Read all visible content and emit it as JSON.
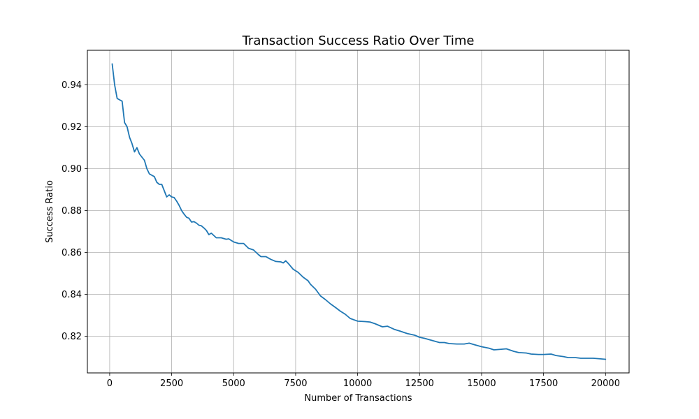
{
  "chart_data": {
    "type": "line",
    "title": "Transaction Success Ratio Over Time",
    "xlabel": "Number of Transactions",
    "ylabel": "Success Ratio",
    "xlim": [
      -900,
      20950
    ],
    "ylim": [
      0.8025,
      0.9565
    ],
    "grid": true,
    "line_color": "#1f77b4",
    "x_ticks": [
      0,
      2500,
      5000,
      7500,
      10000,
      12500,
      15000,
      17500,
      20000
    ],
    "y_ticks": [
      0.82,
      0.84,
      0.86,
      0.88,
      0.9,
      0.92,
      0.94
    ],
    "x_tick_labels": [
      "0",
      "2500",
      "5000",
      "7500",
      "10000",
      "12500",
      "15000",
      "17500",
      "20000"
    ],
    "y_tick_labels": [
      "0.82",
      "0.84",
      "0.86",
      "0.88",
      "0.90",
      "0.92",
      "0.94"
    ],
    "series": [
      {
        "x": [
          100,
          200,
          300,
          500,
          600,
          700,
          800,
          900,
          1000,
          1100,
          1200,
          1400,
          1500,
          1600,
          1800,
          1900,
          2000,
          2100,
          2300,
          2400,
          2500,
          2600,
          2700,
          2800,
          2900,
          3000,
          3100,
          3200,
          3300,
          3400,
          3500,
          3600,
          3700,
          3800,
          3900,
          4000,
          4100,
          4300,
          4500,
          4700,
          4800,
          5000,
          5200,
          5400,
          5600,
          5800,
          6000,
          6100,
          6300,
          6500,
          6700,
          6900,
          7000,
          7100,
          7200,
          7400,
          7600,
          7800,
          8000,
          8100,
          8300,
          8500,
          8700,
          8900,
          9100,
          9300,
          9500,
          9700,
          10000,
          10300,
          10500,
          10700,
          11000,
          11200,
          11500,
          11700,
          12000,
          12300,
          12500,
          12700,
          13000,
          13300,
          13500,
          13700,
          14000,
          14300,
          14500,
          14700,
          15000,
          15300,
          15500,
          15800,
          16000,
          16300,
          16500,
          16800,
          17000,
          17300,
          17500,
          17800,
          18000,
          18300,
          18500,
          18800,
          19000,
          19300,
          19500,
          19800,
          20000
        ],
        "y": [
          0.95,
          0.94,
          0.9335,
          0.9322,
          0.922,
          0.92,
          0.915,
          0.912,
          0.908,
          0.91,
          0.907,
          0.904,
          0.9,
          0.8975,
          0.8962,
          0.8935,
          0.8925,
          0.8925,
          0.8865,
          0.8875,
          0.8865,
          0.8862,
          0.8845,
          0.8825,
          0.88,
          0.8783,
          0.8768,
          0.8763,
          0.8745,
          0.8747,
          0.874,
          0.873,
          0.8727,
          0.8717,
          0.8705,
          0.8685,
          0.8692,
          0.867,
          0.867,
          0.8663,
          0.8665,
          0.865,
          0.8643,
          0.8643,
          0.862,
          0.8612,
          0.859,
          0.858,
          0.858,
          0.8567,
          0.8557,
          0.8555,
          0.855,
          0.856,
          0.8548,
          0.852,
          0.8505,
          0.8482,
          0.8465,
          0.8448,
          0.8425,
          0.8393,
          0.8375,
          0.8355,
          0.8338,
          0.832,
          0.8305,
          0.8285,
          0.8272,
          0.827,
          0.8268,
          0.826,
          0.8245,
          0.8248,
          0.8232,
          0.8225,
          0.8213,
          0.8205,
          0.8195,
          0.819,
          0.818,
          0.817,
          0.817,
          0.8165,
          0.8163,
          0.8163,
          0.8167,
          0.816,
          0.815,
          0.8143,
          0.8135,
          0.8138,
          0.814,
          0.8128,
          0.8122,
          0.812,
          0.8115,
          0.8113,
          0.8113,
          0.8115,
          0.8108,
          0.8103,
          0.8098,
          0.8098,
          0.8095,
          0.8095,
          0.8095,
          0.8092,
          0.809
        ]
      }
    ]
  }
}
